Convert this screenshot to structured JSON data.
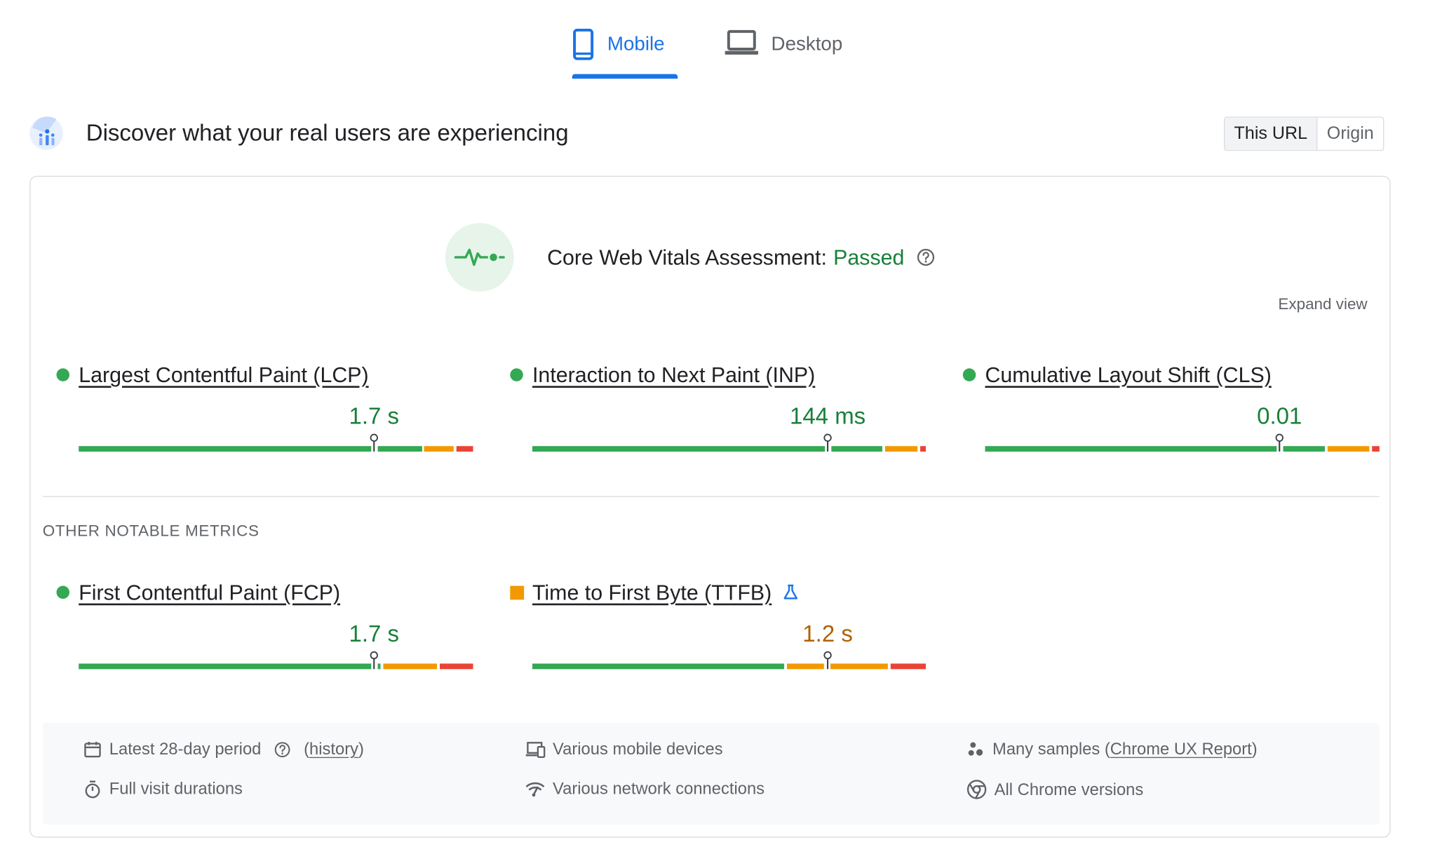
{
  "tabs": [
    {
      "label": "Mobile",
      "icon": "smartphone-icon",
      "active": true
    },
    {
      "label": "Desktop",
      "icon": "laptop-icon",
      "active": false
    }
  ],
  "header": {
    "title": "Discover what your real users are experiencing",
    "logo_icon": "crux-logo-icon",
    "toggle": {
      "active": "This URL",
      "inactive": "Origin"
    }
  },
  "assessment": {
    "label": "Core Web Vitals Assessment:",
    "status": "Passed",
    "icon": "pulse-icon",
    "expand_label": "Expand view"
  },
  "core_metrics": [
    {
      "name": "Largest Contentful Paint (LCP)",
      "value": "1.7 s",
      "status": "good"
    },
    {
      "name": "Interaction to Next Paint (INP)",
      "value": "144 ms",
      "status": "good"
    },
    {
      "name": "Cumulative Layout Shift (CLS)",
      "value": "0.01",
      "status": "good"
    }
  ],
  "other_section_title": "OTHER NOTABLE METRICS",
  "other_metrics": [
    {
      "name": "First Contentful Paint (FCP)",
      "value": "1.7 s",
      "status": "good"
    },
    {
      "name": "Time to First Byte (TTFB)",
      "value": "1.2 s",
      "status": "needs-improvement",
      "experimental": true
    }
  ],
  "footer": {
    "period": "Latest 28-day period",
    "history_link": "history",
    "visit": "Full visit durations",
    "devices": "Various mobile devices",
    "network": "Various network connections",
    "samples_prefix": "Many samples (",
    "samples_link": "Chrome UX Report",
    "samples_suffix": ")",
    "versions": "All Chrome versions"
  },
  "colors": {
    "accent": "#1a73e8",
    "good": "#34a853",
    "good_text": "#188038",
    "needs_improvement": "#f29900",
    "poor": "#ea4335"
  }
}
